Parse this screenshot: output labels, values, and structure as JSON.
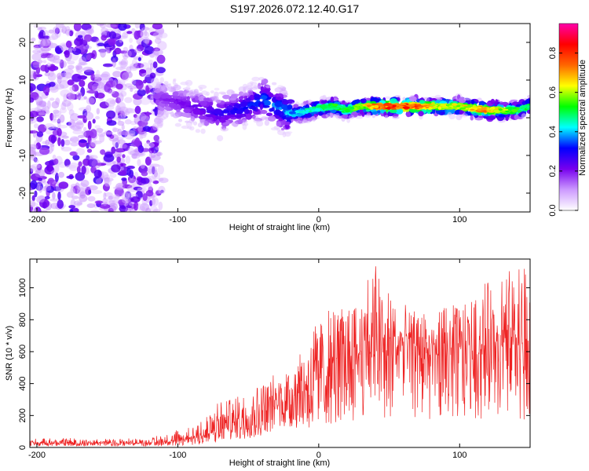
{
  "title": "S197.2026.072.12.40.G17",
  "chart_data": [
    {
      "type": "heatmap",
      "name": "spectrogram",
      "xlabel": "Height of straight line (km)",
      "ylabel": "Frequency (Hz)",
      "xlim": [
        -205,
        150
      ],
      "ylim": [
        -25,
        25
      ],
      "xticks": [
        -200,
        -100,
        0,
        100
      ],
      "yticks": [
        -20,
        -10,
        0,
        10,
        20
      ],
      "colorbar": {
        "label": "Normalized spectral amplitude",
        "range": [
          0.0,
          0.95
        ],
        "ticks": [
          0.0,
          0.2,
          0.4,
          0.6,
          0.8
        ],
        "tick_labels": [
          "0.0",
          "0.2",
          "0.4",
          "0.6",
          "0.8"
        ],
        "colormap": [
          "#ffffff",
          "#cc99ff",
          "#7700ee",
          "#0000ff",
          "#00ffff",
          "#00ff00",
          "#ffff00",
          "#ff6600",
          "#ff0000",
          "#ff00aa"
        ]
      },
      "peak_track": {
        "x": [
          -110,
          -90,
          -70,
          -50,
          -40,
          -30,
          -20,
          -10,
          0,
          10,
          20,
          30,
          40,
          50,
          60,
          70,
          80,
          90,
          100,
          110,
          120,
          130,
          140,
          150
        ],
        "freq_hz": [
          5,
          3,
          1,
          3,
          5,
          3,
          1,
          1.5,
          2.5,
          3,
          2,
          3,
          3,
          3,
          3,
          3,
          3,
          3,
          3,
          2.5,
          2,
          2,
          2,
          3
        ],
        "amplitude": [
          0.2,
          0.25,
          0.3,
          0.35,
          0.4,
          0.4,
          0.45,
          0.5,
          0.55,
          0.6,
          0.6,
          0.65,
          0.85,
          0.9,
          0.9,
          0.85,
          0.75,
          0.7,
          0.7,
          0.75,
          0.8,
          0.7,
          0.6,
          0.55
        ]
      }
    },
    {
      "type": "line",
      "name": "snr",
      "xlabel": "Height of straight line (km)",
      "ylabel": "SNR (10 * v/v)",
      "xlim": [
        -205,
        150
      ],
      "ylim": [
        0,
        1180
      ],
      "xticks": [
        -200,
        -100,
        0,
        100
      ],
      "yticks": [
        0,
        200,
        400,
        600,
        800,
        1000
      ],
      "color": "#ee2222",
      "envelope": {
        "x": [
          -205,
          -180,
          -150,
          -120,
          -100,
          -90,
          -80,
          -70,
          -60,
          -50,
          -40,
          -30,
          -20,
          -10,
          0,
          10,
          20,
          30,
          40,
          50,
          60,
          70,
          80,
          90,
          100,
          110,
          120,
          130,
          140,
          150
        ],
        "baseline": [
          25,
          25,
          25,
          25,
          35,
          50,
          70,
          100,
          140,
          180,
          220,
          260,
          300,
          360,
          420,
          460,
          520,
          560,
          580,
          600,
          600,
          580,
          560,
          560,
          580,
          590,
          600,
          600,
          580,
          560
        ],
        "peak": [
          55,
          60,
          55,
          60,
          110,
          150,
          220,
          290,
          330,
          360,
          400,
          470,
          530,
          700,
          830,
          870,
          920,
          1000,
          1180,
          980,
          900,
          860,
          860,
          880,
          900,
          950,
          1050,
          1100,
          1150,
          1150
        ]
      }
    }
  ]
}
